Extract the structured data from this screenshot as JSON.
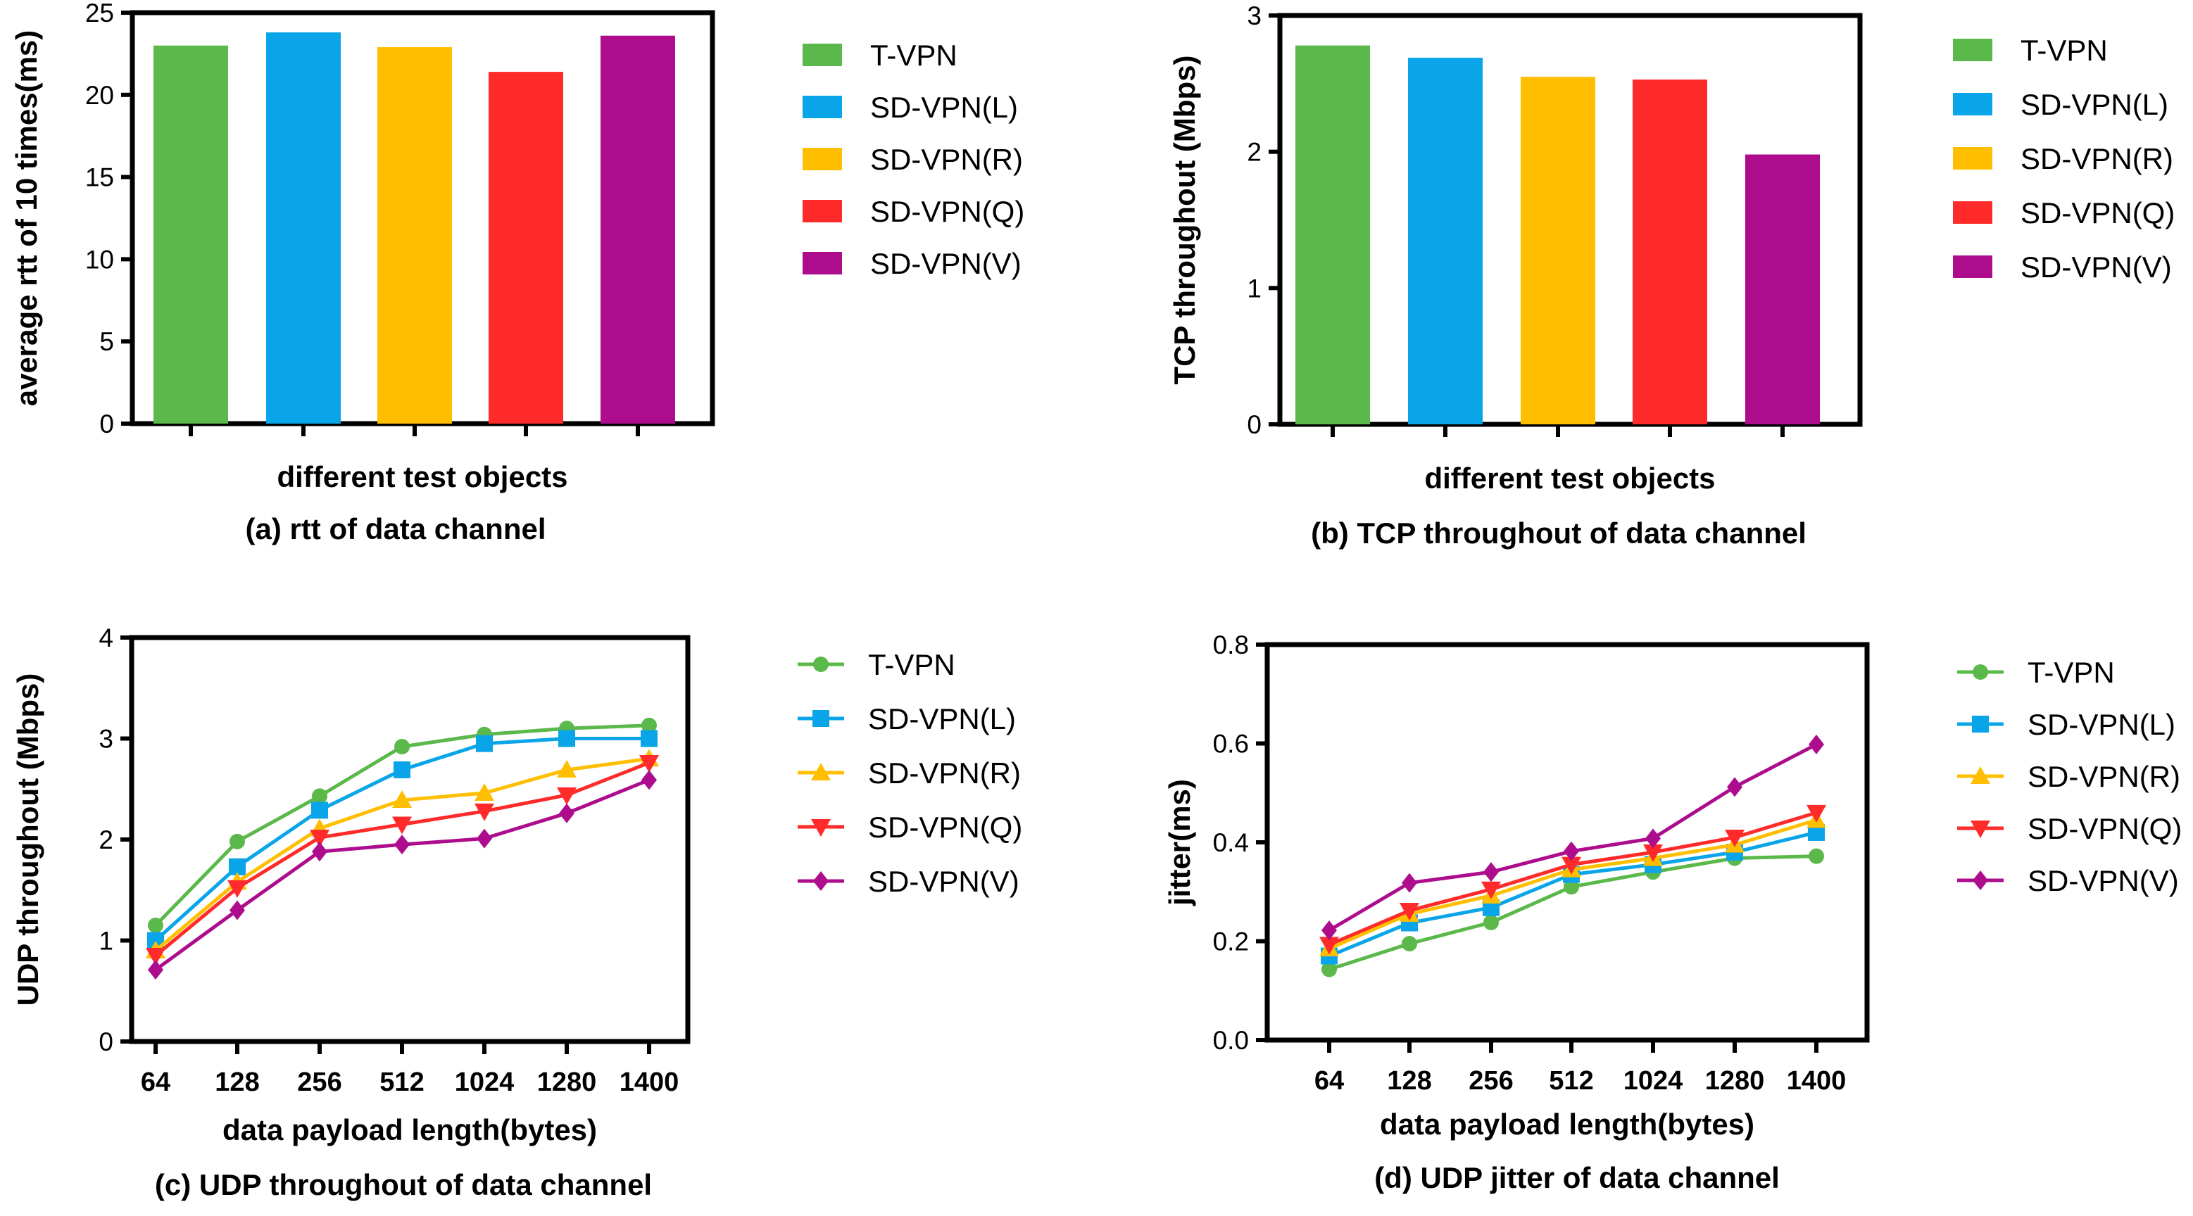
{
  "chart_data": [
    {
      "id": "a",
      "type": "bar",
      "caption": "(a) rtt of data channel",
      "xlabel": "different test objects",
      "ylabel": "average rtt of 10 times(ms)",
      "ylim": [
        0,
        25
      ],
      "yticks": [
        "0",
        "5",
        "10",
        "15",
        "20",
        "25"
      ],
      "categories": [
        "T-VPN",
        "SD-VPN(L)",
        "SD-VPN(R)",
        "SD-VPN(Q)",
        "SD-VPN(V)"
      ],
      "values": [
        23.0,
        23.8,
        22.9,
        21.4,
        23.6
      ],
      "colors": [
        "#5bb84a",
        "#0aa5e8",
        "#ffbf00",
        "#ff2a2a",
        "#ad0d8d"
      ],
      "legend": [
        "T-VPN",
        "SD-VPN(L)",
        "SD-VPN(R)",
        "SD-VPN(Q)",
        "SD-VPN(V)"
      ]
    },
    {
      "id": "b",
      "type": "bar",
      "caption": "(b) TCP throughout of data channel",
      "xlabel": "different test objects",
      "ylabel": "TCP throughout (Mbps)",
      "ylim": [
        0,
        3
      ],
      "yticks": [
        "0",
        "1",
        "2",
        "3"
      ],
      "categories": [
        "T-VPN",
        "SD-VPN(L)",
        "SD-VPN(R)",
        "SD-VPN(Q)",
        "SD-VPN(V)"
      ],
      "values": [
        2.78,
        2.69,
        2.55,
        2.53,
        1.98
      ],
      "colors": [
        "#5bb84a",
        "#0aa5e8",
        "#ffbf00",
        "#ff2a2a",
        "#ad0d8d"
      ],
      "legend": [
        "T-VPN",
        "SD-VPN(L)",
        "SD-VPN(R)",
        "SD-VPN(Q)",
        "SD-VPN(V)"
      ]
    },
    {
      "id": "c",
      "type": "line",
      "caption": "(c) UDP throughout of data channel",
      "xlabel": "data payload length(bytes)",
      "ylabel": "UDP throughout (Mbps)",
      "ylim": [
        0,
        4
      ],
      "yticks": [
        "0",
        "1",
        "2",
        "3",
        "4"
      ],
      "categories": [
        "64",
        "128",
        "256",
        "512",
        "1024",
        "1280",
        "1400"
      ],
      "series": [
        {
          "name": "T-VPN",
          "color": "#5bb84a",
          "marker": "circle",
          "values": [
            1.15,
            1.98,
            2.43,
            2.92,
            3.04,
            3.1,
            3.13
          ]
        },
        {
          "name": "SD-VPN(L)",
          "color": "#0aa5e8",
          "marker": "square",
          "values": [
            1.0,
            1.73,
            2.29,
            2.69,
            2.95,
            3.0,
            3.0
          ]
        },
        {
          "name": "SD-VPN(R)",
          "color": "#ffbf00",
          "marker": "triangle-up",
          "values": [
            0.9,
            1.58,
            2.11,
            2.39,
            2.46,
            2.69,
            2.8
          ]
        },
        {
          "name": "SD-VPN(Q)",
          "color": "#ff2a2a",
          "marker": "triangle-down",
          "values": [
            0.85,
            1.52,
            2.02,
            2.15,
            2.28,
            2.44,
            2.76
          ]
        },
        {
          "name": "SD-VPN(V)",
          "color": "#ad0d8d",
          "marker": "diamond",
          "values": [
            0.71,
            1.3,
            1.88,
            1.95,
            2.01,
            2.26,
            2.59
          ]
        }
      ]
    },
    {
      "id": "d",
      "type": "line",
      "caption": "(d) UDP jitter of data channel",
      "xlabel": "data payload length(bytes)",
      "ylabel": "jitter(ms)",
      "ylim": [
        0,
        0.8
      ],
      "yticks": [
        "0.0",
        "0.2",
        "0.4",
        "0.6",
        "0.8"
      ],
      "categories": [
        "64",
        "128",
        "256",
        "512",
        "1024",
        "1280",
        "1400"
      ],
      "series": [
        {
          "name": "T-VPN",
          "color": "#5bb84a",
          "marker": "circle",
          "values": [
            0.143,
            0.195,
            0.238,
            0.31,
            0.34,
            0.368,
            0.372
          ]
        },
        {
          "name": "SD-VPN(L)",
          "color": "#0aa5e8",
          "marker": "square",
          "values": [
            0.17,
            0.237,
            0.268,
            0.335,
            0.355,
            0.38,
            0.42
          ]
        },
        {
          "name": "SD-VPN(R)",
          "color": "#ffbf00",
          "marker": "triangle-up",
          "values": [
            0.185,
            0.255,
            0.292,
            0.345,
            0.368,
            0.395,
            0.445
          ]
        },
        {
          "name": "SD-VPN(Q)",
          "color": "#ff2a2a",
          "marker": "triangle-down",
          "values": [
            0.193,
            0.262,
            0.305,
            0.355,
            0.38,
            0.41,
            0.46
          ]
        },
        {
          "name": "SD-VPN(V)",
          "color": "#ad0d8d",
          "marker": "diamond",
          "values": [
            0.222,
            0.318,
            0.34,
            0.382,
            0.408,
            0.512,
            0.598
          ]
        }
      ]
    }
  ]
}
